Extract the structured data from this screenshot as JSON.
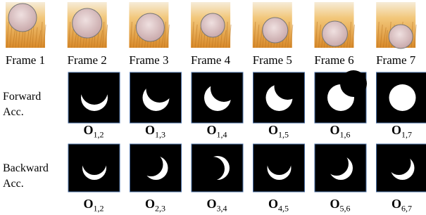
{
  "frames": [
    "Frame 1",
    "Frame 2",
    "Frame 3",
    "Frame 4",
    "Frame 5",
    "Frame 6",
    "Frame 7"
  ],
  "forward": {
    "label": [
      "Forward",
      "Acc."
    ],
    "items": [
      {
        "main": "O",
        "sub": "1,2"
      },
      {
        "main": "O",
        "sub": "1,3"
      },
      {
        "main": "O",
        "sub": "1,4"
      },
      {
        "main": "O",
        "sub": "1,5"
      },
      {
        "main": "O",
        "sub": "1,6"
      },
      {
        "main": "O",
        "sub": "1,7"
      }
    ]
  },
  "backward": {
    "label": [
      "Backward",
      "Acc."
    ],
    "items": [
      {
        "main": "O",
        "sub": "1,2"
      },
      {
        "main": "O",
        "sub": "2,3"
      },
      {
        "main": "O",
        "sub": "3,4"
      },
      {
        "main": "O",
        "sub": "4,5"
      },
      {
        "main": "O",
        "sub": "5,6"
      },
      {
        "main": "O",
        "sub": "6,7"
      }
    ]
  }
}
